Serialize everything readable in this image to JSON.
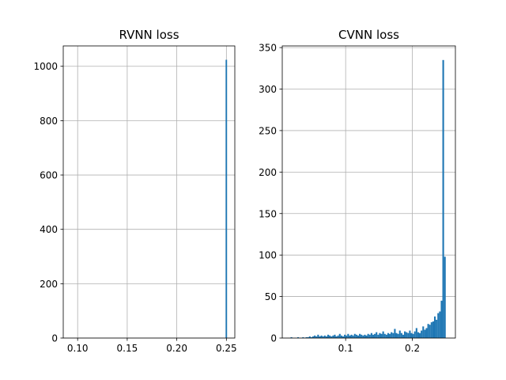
{
  "chart_data": [
    {
      "type": "bar",
      "title": "RVNN loss",
      "xlabel": "",
      "ylabel": "",
      "xlim": [
        0.0855,
        0.2585
      ],
      "ylim": [
        0,
        1075
      ],
      "grid": true,
      "x_ticks": [
        0.1,
        0.15,
        0.2,
        0.25
      ],
      "x_tick_labels": [
        "0.10",
        "0.15",
        "0.20",
        "0.25"
      ],
      "y_ticks": [
        0,
        200,
        400,
        600,
        800,
        1000
      ],
      "y_tick_labels": [
        "0",
        "200",
        "400",
        "600",
        "800",
        "1000"
      ],
      "bar_color": "#1f77b4",
      "bin_width": 0.0015,
      "bins": [
        {
          "x": 0.2492,
          "count": 1024
        },
        {
          "x": 0.2507,
          "count": 0
        }
      ]
    },
    {
      "type": "bar",
      "title": "CVNN loss",
      "xlabel": "",
      "ylabel": "",
      "xlim": [
        0.005,
        0.2645
      ],
      "ylim": [
        0,
        352
      ],
      "grid": true,
      "x_ticks": [
        0.1,
        0.2
      ],
      "x_tick_labels": [
        "0.1",
        "0.2"
      ],
      "y_ticks": [
        0,
        50,
        100,
        150,
        200,
        250,
        300,
        350
      ],
      "y_tick_labels": [
        "0",
        "50",
        "100",
        "150",
        "200",
        "250",
        "300",
        "350"
      ],
      "bar_color": "#1f77b4",
      "bin_width": 0.0025,
      "bins": [
        {
          "x": 0.0175,
          "count": 1
        },
        {
          "x": 0.02,
          "count": 0
        },
        {
          "x": 0.0225,
          "count": 0
        },
        {
          "x": 0.025,
          "count": 0
        },
        {
          "x": 0.0275,
          "count": 1
        },
        {
          "x": 0.03,
          "count": 0
        },
        {
          "x": 0.0325,
          "count": 0
        },
        {
          "x": 0.035,
          "count": 1
        },
        {
          "x": 0.0375,
          "count": 0
        },
        {
          "x": 0.04,
          "count": 1
        },
        {
          "x": 0.0425,
          "count": 1
        },
        {
          "x": 0.045,
          "count": 2
        },
        {
          "x": 0.0475,
          "count": 1
        },
        {
          "x": 0.05,
          "count": 2
        },
        {
          "x": 0.0525,
          "count": 3
        },
        {
          "x": 0.055,
          "count": 2
        },
        {
          "x": 0.0575,
          "count": 4
        },
        {
          "x": 0.06,
          "count": 2
        },
        {
          "x": 0.0625,
          "count": 3
        },
        {
          "x": 0.065,
          "count": 2
        },
        {
          "x": 0.0675,
          "count": 3
        },
        {
          "x": 0.07,
          "count": 2
        },
        {
          "x": 0.0725,
          "count": 4
        },
        {
          "x": 0.075,
          "count": 3
        },
        {
          "x": 0.0775,
          "count": 2
        },
        {
          "x": 0.08,
          "count": 3
        },
        {
          "x": 0.0825,
          "count": 4
        },
        {
          "x": 0.085,
          "count": 2
        },
        {
          "x": 0.0875,
          "count": 3
        },
        {
          "x": 0.09,
          "count": 5
        },
        {
          "x": 0.0925,
          "count": 3
        },
        {
          "x": 0.095,
          "count": 2
        },
        {
          "x": 0.0975,
          "count": 4
        },
        {
          "x": 0.1,
          "count": 3
        },
        {
          "x": 0.1025,
          "count": 5
        },
        {
          "x": 0.105,
          "count": 3
        },
        {
          "x": 0.1075,
          "count": 4
        },
        {
          "x": 0.11,
          "count": 3
        },
        {
          "x": 0.1125,
          "count": 5
        },
        {
          "x": 0.115,
          "count": 4
        },
        {
          "x": 0.1175,
          "count": 3
        },
        {
          "x": 0.12,
          "count": 5
        },
        {
          "x": 0.1225,
          "count": 4
        },
        {
          "x": 0.125,
          "count": 3
        },
        {
          "x": 0.1275,
          "count": 4
        },
        {
          "x": 0.13,
          "count": 3
        },
        {
          "x": 0.1325,
          "count": 5
        },
        {
          "x": 0.135,
          "count": 4
        },
        {
          "x": 0.1375,
          "count": 6
        },
        {
          "x": 0.14,
          "count": 4
        },
        {
          "x": 0.1425,
          "count": 5
        },
        {
          "x": 0.145,
          "count": 7
        },
        {
          "x": 0.1475,
          "count": 4
        },
        {
          "x": 0.15,
          "count": 6
        },
        {
          "x": 0.1525,
          "count": 5
        },
        {
          "x": 0.155,
          "count": 8
        },
        {
          "x": 0.1575,
          "count": 5
        },
        {
          "x": 0.16,
          "count": 4
        },
        {
          "x": 0.1625,
          "count": 6
        },
        {
          "x": 0.165,
          "count": 5
        },
        {
          "x": 0.1675,
          "count": 7
        },
        {
          "x": 0.17,
          "count": 6
        },
        {
          "x": 0.1725,
          "count": 11
        },
        {
          "x": 0.175,
          "count": 6
        },
        {
          "x": 0.1775,
          "count": 5
        },
        {
          "x": 0.18,
          "count": 9
        },
        {
          "x": 0.1825,
          "count": 6
        },
        {
          "x": 0.185,
          "count": 4
        },
        {
          "x": 0.1875,
          "count": 8
        },
        {
          "x": 0.19,
          "count": 7
        },
        {
          "x": 0.1925,
          "count": 6
        },
        {
          "x": 0.195,
          "count": 9
        },
        {
          "x": 0.1975,
          "count": 6
        },
        {
          "x": 0.2,
          "count": 5
        },
        {
          "x": 0.2025,
          "count": 8
        },
        {
          "x": 0.205,
          "count": 12
        },
        {
          "x": 0.2075,
          "count": 7
        },
        {
          "x": 0.21,
          "count": 6
        },
        {
          "x": 0.2125,
          "count": 9
        },
        {
          "x": 0.215,
          "count": 14
        },
        {
          "x": 0.2175,
          "count": 10
        },
        {
          "x": 0.22,
          "count": 12
        },
        {
          "x": 0.2225,
          "count": 17
        },
        {
          "x": 0.225,
          "count": 16
        },
        {
          "x": 0.2275,
          "count": 19
        },
        {
          "x": 0.23,
          "count": 20
        },
        {
          "x": 0.2325,
          "count": 26
        },
        {
          "x": 0.235,
          "count": 22
        },
        {
          "x": 0.2375,
          "count": 30
        },
        {
          "x": 0.24,
          "count": 32
        },
        {
          "x": 0.2425,
          "count": 45
        },
        {
          "x": 0.245,
          "count": 335
        },
        {
          "x": 0.2475,
          "count": 98
        },
        {
          "x": 0.25,
          "count": 0
        }
      ]
    }
  ]
}
